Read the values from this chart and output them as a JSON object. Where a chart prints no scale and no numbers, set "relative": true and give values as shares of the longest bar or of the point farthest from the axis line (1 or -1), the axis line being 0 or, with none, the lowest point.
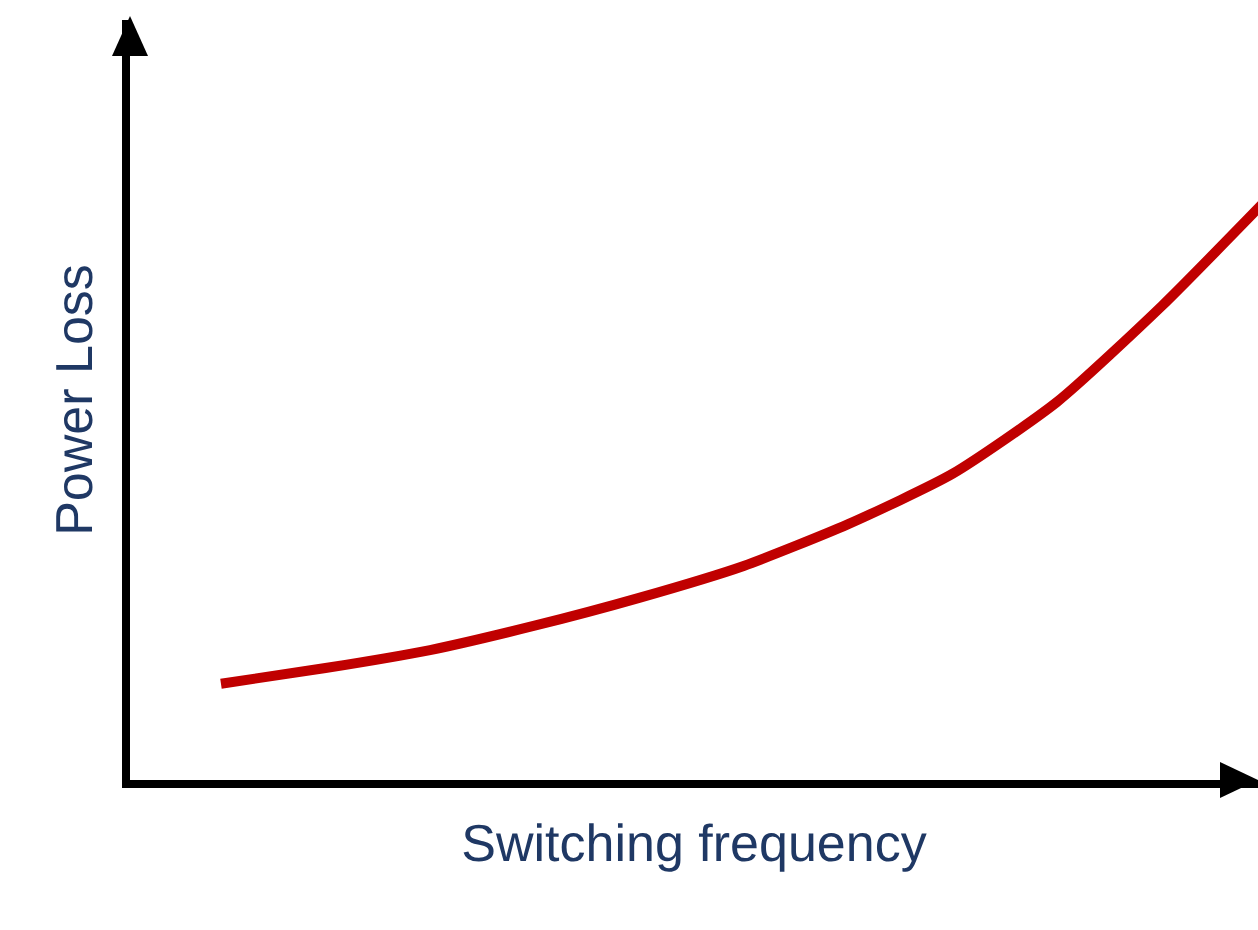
{
  "chart_data": {
    "type": "line",
    "relative": true,
    "xlabel": "Switching frequency",
    "ylabel": "Power Loss",
    "categories": [
      null,
      null,
      null,
      null,
      null,
      null,
      null,
      null,
      null,
      null,
      null
    ],
    "series": [
      {
        "color": "#c00000",
        "values": [
          0.166,
          0.193,
          0.224,
          0.266,
          0.314,
          0.369,
          0.441,
          0.528,
          0.652,
          0.817,
          1
        ]
      }
    ],
    "grid": false,
    "marker": "none",
    "line_style": "solid"
  }
}
